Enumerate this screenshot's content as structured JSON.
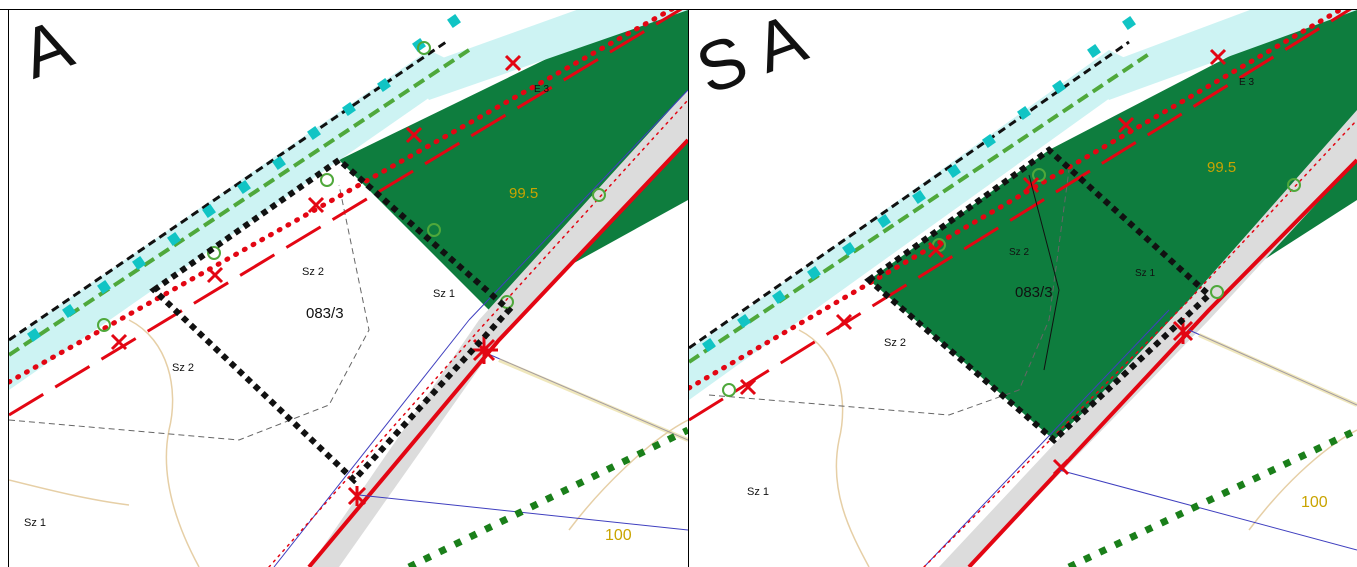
{
  "colors": {
    "background": "#ffffff",
    "zone_green": "#0e7d3e",
    "water": "#cdf3f3",
    "road_gray": "#dcdcdc",
    "red_line": "#e30613",
    "marker_cyan": "#11c4c4",
    "green_dash": "#1a7f1a",
    "contour": "#e6cfa6",
    "elevation_text": "#c9a400",
    "blue_line": "#3f3fbf"
  },
  "panels": [
    {
      "id": "before",
      "big_letters": "A",
      "labels": {
        "zone_e3": "E 3",
        "elevation_99": "99.5",
        "sz2_upper": "Sz 2",
        "parcel": "083/3",
        "sz1_right": "Sz 1",
        "sz2_lower": "Sz 2",
        "sz1_bottom": "Sz 1",
        "elevation_100": "100"
      }
    },
    {
      "id": "after",
      "big_letters": "S A",
      "labels": {
        "zone_e3": "E 3",
        "elevation_99": "99.5",
        "sz2_upper": "Sz 2",
        "parcel": "083/3",
        "sz1_right": "Sz 1",
        "sz2_lower": "Sz 2",
        "sz1_bottom": "Sz 1",
        "elevation_100": "100"
      }
    }
  ],
  "icons": {
    "boundary_marker": "cyan-square-marker",
    "tree_marker": "green-circle-marker",
    "cross_marker": "red-x-marker"
  }
}
